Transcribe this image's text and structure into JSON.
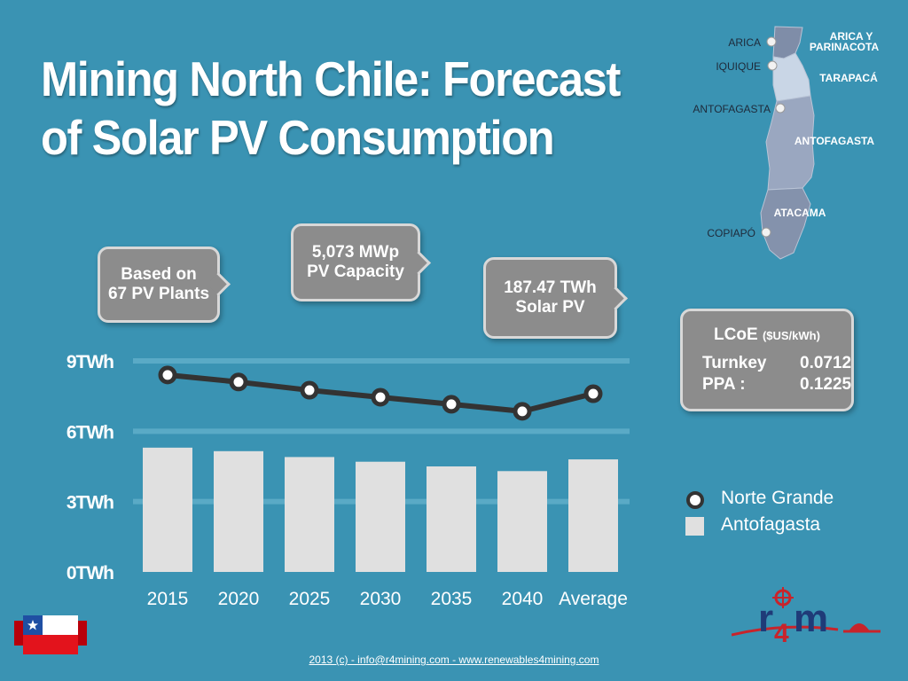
{
  "title_line1": "Mining North Chile: Forecast",
  "title_line2": "of Solar PV Consumption",
  "callouts": {
    "plants_line1": "Based on",
    "plants_line2": "67 PV Plants",
    "capacity_line1": "5,073 MWp",
    "capacity_line2": "PV Capacity",
    "energy_line1": "187.47 TWh",
    "energy_line2": "Solar PV"
  },
  "lcoe": {
    "title": "LCoE",
    "unit": "($US/kWh)",
    "rows": [
      {
        "label": "Turnkey",
        "value": "0.0712"
      },
      {
        "label": "PPA :",
        "value": "0.1225"
      }
    ]
  },
  "map": {
    "cities": [
      "ARICA",
      "IQUIQUE",
      "ANTOFAGASTA",
      "COPIAPÓ"
    ],
    "regions": [
      "ARICA Y",
      "PARINACOTA",
      "TARAPACÁ",
      "ANTOFAGASTA",
      "ATACAMA"
    ]
  },
  "chart_data": {
    "type": "bar",
    "categories": [
      "2015",
      "2020",
      "2025",
      "2030",
      "2035",
      "2040",
      "Average"
    ],
    "series": [
      {
        "name": "Antofagasta",
        "kind": "bar",
        "values": [
          5.3,
          5.15,
          4.9,
          4.7,
          4.5,
          4.3,
          4.8
        ],
        "color": "#e0e0e0"
      },
      {
        "name": "Norte Grande",
        "kind": "line",
        "values": [
          8.4,
          8.1,
          7.75,
          7.45,
          7.15,
          6.85,
          7.6
        ],
        "color": "#333333"
      }
    ],
    "yticks": [
      "0TWh",
      "3TWh",
      "6TWh",
      "9TWh"
    ],
    "ytick_values": [
      0,
      3,
      6,
      9
    ],
    "ylim": [
      0,
      9
    ],
    "grid": true,
    "legend": "right"
  },
  "footer": "2013 (c) - info@r4mining.com - www.renewables4mining.com",
  "colors": {
    "background": "#3a93b3",
    "bubble": "#8c8c8c",
    "map_highlight": "#c9d6e6",
    "map_region": "#9aa7c0"
  }
}
